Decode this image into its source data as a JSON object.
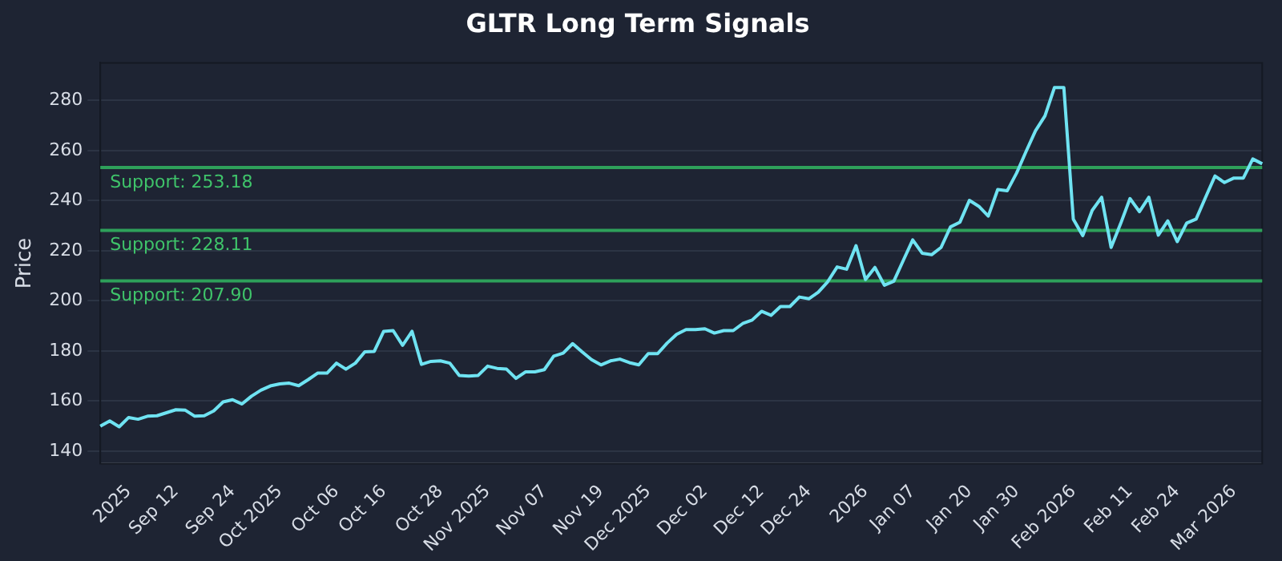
{
  "chart_data": {
    "type": "line",
    "title": "GLTR Long Term Signals",
    "ylabel": "Price",
    "categories": [
      null,
      null,
      null,
      "2025",
      null,
      null,
      null,
      null,
      "Sep 12",
      null,
      null,
      null,
      null,
      null,
      "Sep 24",
      null,
      null,
      null,
      null,
      "Oct 2025",
      null,
      null,
      null,
      null,
      null,
      "Oct 06",
      null,
      null,
      null,
      null,
      "Oct 16",
      null,
      null,
      null,
      null,
      null,
      "Oct 28",
      null,
      null,
      null,
      null,
      "Nov 2025",
      null,
      null,
      null,
      null,
      null,
      "Nov 07",
      null,
      null,
      null,
      null,
      null,
      "Nov 19",
      null,
      null,
      null,
      null,
      "Dec 2025",
      null,
      null,
      null,
      null,
      null,
      "Dec 02",
      null,
      null,
      null,
      null,
      null,
      "Dec 12",
      null,
      null,
      null,
      null,
      "Dec 24",
      null,
      null,
      null,
      null,
      null,
      "2026",
      null,
      null,
      null,
      null,
      "Jan 07",
      null,
      null,
      null,
      null,
      null,
      "Jan 20",
      null,
      null,
      null,
      null,
      "Jan 30",
      null,
      null,
      null,
      null,
      null,
      "Feb 2026",
      null,
      null,
      null,
      null,
      null,
      "Feb 11",
      null,
      null,
      null,
      null,
      "Feb 24",
      null,
      null,
      null,
      null,
      null,
      "Mar 2026",
      null,
      null,
      null
    ],
    "series": [
      {
        "color": "#6fe3f2",
        "values": [
          149.9,
          152,
          149.7,
          153.4,
          152.7,
          153.9,
          154.1,
          155.3,
          156.5,
          156.3,
          153.9,
          154.1,
          156,
          159.6,
          160.5,
          158.8,
          161.9,
          164.3,
          166,
          166.8,
          167.1,
          166.1,
          168.5,
          171.1,
          171.1,
          175.1,
          172.7,
          175.1,
          179.6,
          179.8,
          187.8,
          188.1,
          182.2,
          187.8,
          174.6,
          175.8,
          176,
          175.1,
          170.2,
          169.9,
          170.2,
          173.9,
          173,
          172.7,
          169,
          171.6,
          171.6,
          172.5,
          177.9,
          179.1,
          182.9,
          179.6,
          176.5,
          174.4,
          176,
          176.7,
          175.3,
          174.4,
          178.9,
          178.9,
          183.1,
          186.6,
          188.5,
          188.5,
          188.8,
          187.1,
          188.1,
          188.1,
          190.9,
          192.3,
          195.8,
          194.2,
          197.7,
          197.7,
          201.5,
          200.8,
          203.4,
          207.6,
          213.5,
          212.6,
          222,
          208.5,
          213.3,
          206.2,
          207.8,
          216.1,
          224.3,
          219,
          218.4,
          221.3,
          229.5,
          231.4,
          240.1,
          237.7,
          233.8,
          244.4,
          243.9,
          251,
          259.6,
          267.9,
          273.8,
          285.1,
          285.1,
          232.6,
          226,
          236.1,
          241.3,
          221.3,
          230.7,
          240.8,
          235.6,
          241.3,
          226.2,
          231.9,
          223.6,
          231,
          232.6,
          241.3,
          249.8,
          247.2,
          249,
          249,
          256.6,
          254.7
        ]
      }
    ],
    "ylim": [
      135,
      295
    ],
    "yticks": [
      140,
      160,
      180,
      200,
      220,
      240,
      260,
      280
    ],
    "grid": "y",
    "legend": false,
    "marker": "none",
    "line_style": "solid",
    "ref_lines": [
      {
        "axis": "y",
        "value": 253.18,
        "label": "Support: 253.18",
        "color": "#2ea05a"
      },
      {
        "axis": "y",
        "value": 228.11,
        "label": "Support: 228.11",
        "color": "#2ea05a"
      },
      {
        "axis": "y",
        "value": 207.9,
        "label": "Support: 207.90",
        "color": "#2ea05a"
      }
    ]
  }
}
